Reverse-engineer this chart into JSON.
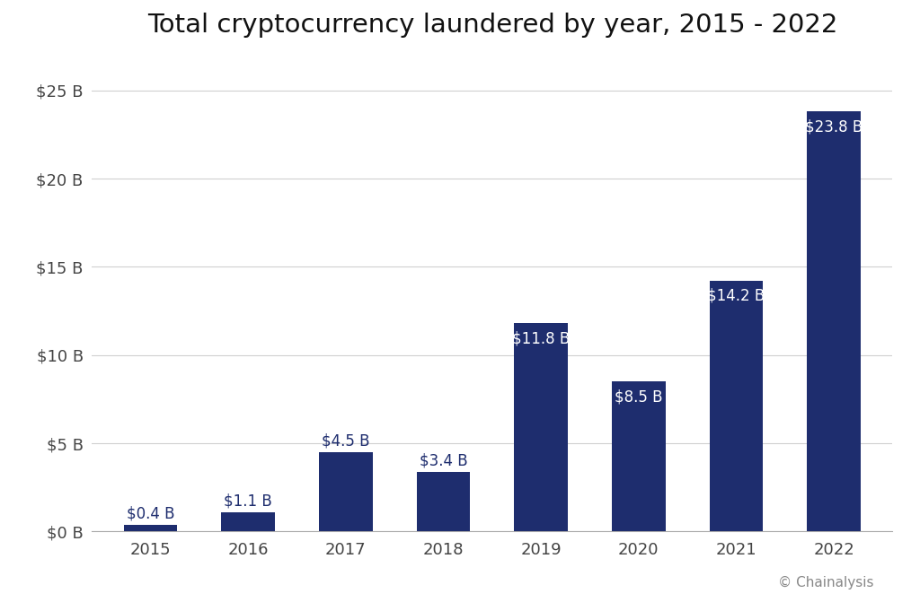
{
  "title": "Total cryptocurrency laundered by year, 2015 - 2022",
  "categories": [
    "2015",
    "2016",
    "2017",
    "2018",
    "2019",
    "2020",
    "2021",
    "2022"
  ],
  "values": [
    0.4,
    1.1,
    4.5,
    3.4,
    11.8,
    8.5,
    14.2,
    23.8
  ],
  "bar_color": "#1e2d6e",
  "label_color_outside": "#1e2d6e",
  "label_color_inside": "#ffffff",
  "background_color": "#ffffff",
  "ytick_labels": [
    "$0 B",
    "$5 B",
    "$10 B",
    "$15 B",
    "$20 B",
    "$25 B"
  ],
  "ytick_values": [
    0,
    5,
    10,
    15,
    20,
    25
  ],
  "ylim": [
    0,
    27
  ],
  "value_labels": [
    "$0.4 B",
    "$1.1 B",
    "$4.5 B",
    "$3.4 B",
    "$11.8 B",
    "$8.5 B",
    "$14.2 B",
    "$23.8 B"
  ],
  "annotation": "© Chainalysis",
  "title_fontsize": 21,
  "tick_fontsize": 13,
  "label_fontsize": 12,
  "annotation_fontsize": 11,
  "grid_color": "#d0d0d0",
  "spine_color": "#aaaaaa",
  "outside_label_threshold": 5.0
}
